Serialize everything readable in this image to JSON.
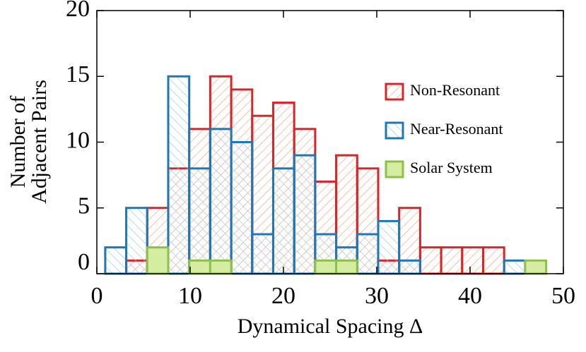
{
  "chart_data": {
    "type": "histogram",
    "xlabel": "Dynamical Spacing Δ",
    "ylabel": [
      "Number of",
      "Adjacent Pairs"
    ],
    "bins": [
      0.9,
      3.15,
      5.4,
      7.65,
      9.9,
      12.15,
      14.4,
      16.65,
      18.9,
      21.15,
      23.4,
      25.65,
      27.9,
      30.15,
      32.4,
      34.65,
      36.9,
      39.15,
      41.4,
      43.65,
      45.9,
      48.15
    ],
    "series": [
      {
        "name": "Non-Resonant",
        "color": "#d62728",
        "values": [
          0,
          1,
          5,
          8,
          11,
          15,
          14,
          12,
          13,
          11,
          7,
          9,
          8,
          1,
          5,
          2,
          2,
          2,
          2,
          0,
          0
        ]
      },
      {
        "name": "Near-Resonant",
        "color": "#1f77b4",
        "values": [
          2,
          5,
          0,
          15,
          8,
          11,
          10,
          3,
          8,
          9,
          3,
          2,
          3,
          4,
          1,
          0,
          0,
          0,
          0,
          1,
          0
        ]
      },
      {
        "name": "Solar System",
        "color": "#8dc04a",
        "values": [
          0,
          0,
          2,
          0,
          1,
          1,
          0,
          0,
          0,
          0,
          1,
          1,
          0,
          0,
          0,
          0,
          0,
          0,
          0,
          0,
          1
        ]
      }
    ],
    "xlim": [
      0,
      50
    ],
    "ylim": [
      0,
      20
    ],
    "xticks": [
      0,
      10,
      20,
      30,
      40,
      50
    ],
    "yticks": [
      0,
      5,
      10,
      15,
      20
    ],
    "legend": "upper right"
  }
}
